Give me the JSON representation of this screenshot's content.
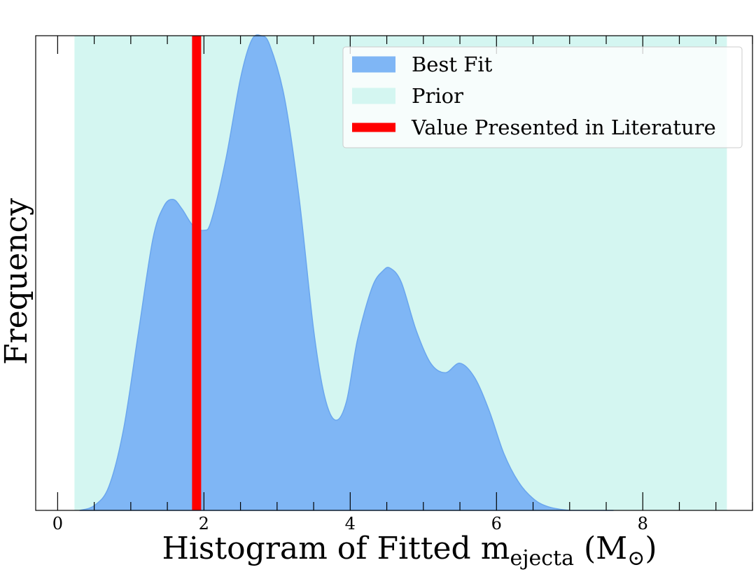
{
  "chart_data": {
    "type": "area",
    "xlim": [
      -0.3,
      9.5
    ],
    "ylim": [
      0,
      1.0
    ],
    "x_ticks": [
      0,
      2,
      4,
      6,
      8
    ],
    "x_tick_labels": [
      "0",
      "2",
      "4",
      "6",
      "8"
    ],
    "x_minor_step": 0.5,
    "xlabel": {
      "main": "Histogram of Fitted m",
      "subscript": "ejecta",
      "unit_open": " (M",
      "unit_symbol": "⊙",
      "unit_close": ")"
    },
    "ylabel": "Frequency",
    "grid": false,
    "legend_position": "top-right",
    "prior": {
      "name": "Prior",
      "x_min": 0.23,
      "x_max": 9.15,
      "color": "#d4f6f1"
    },
    "literature_value": {
      "name": "Value Presented in Literature",
      "x": 1.9,
      "color": "#ff0000"
    },
    "best_fit": {
      "name": "Best Fit",
      "color": "#7fb6f5",
      "edge_color": "#6aa6ee",
      "x": [
        0.3,
        0.5,
        0.7,
        0.9,
        1.1,
        1.3,
        1.45,
        1.58,
        1.7,
        1.85,
        2.0,
        2.1,
        2.3,
        2.5,
        2.65,
        2.78,
        2.9,
        3.1,
        3.3,
        3.5,
        3.65,
        3.8,
        3.95,
        4.1,
        4.3,
        4.45,
        4.55,
        4.7,
        4.9,
        5.1,
        5.3,
        5.5,
        5.7,
        5.9,
        6.1,
        6.3,
        6.5,
        6.7,
        7.0,
        7.3,
        7.6
      ],
      "y": [
        0.0,
        0.01,
        0.05,
        0.17,
        0.37,
        0.57,
        0.64,
        0.655,
        0.635,
        0.6,
        0.59,
        0.61,
        0.74,
        0.91,
        0.99,
        1.0,
        0.98,
        0.87,
        0.66,
        0.38,
        0.24,
        0.19,
        0.23,
        0.36,
        0.47,
        0.505,
        0.51,
        0.48,
        0.38,
        0.31,
        0.29,
        0.31,
        0.28,
        0.21,
        0.12,
        0.06,
        0.025,
        0.008,
        0.0,
        0.0,
        0.0
      ]
    }
  }
}
